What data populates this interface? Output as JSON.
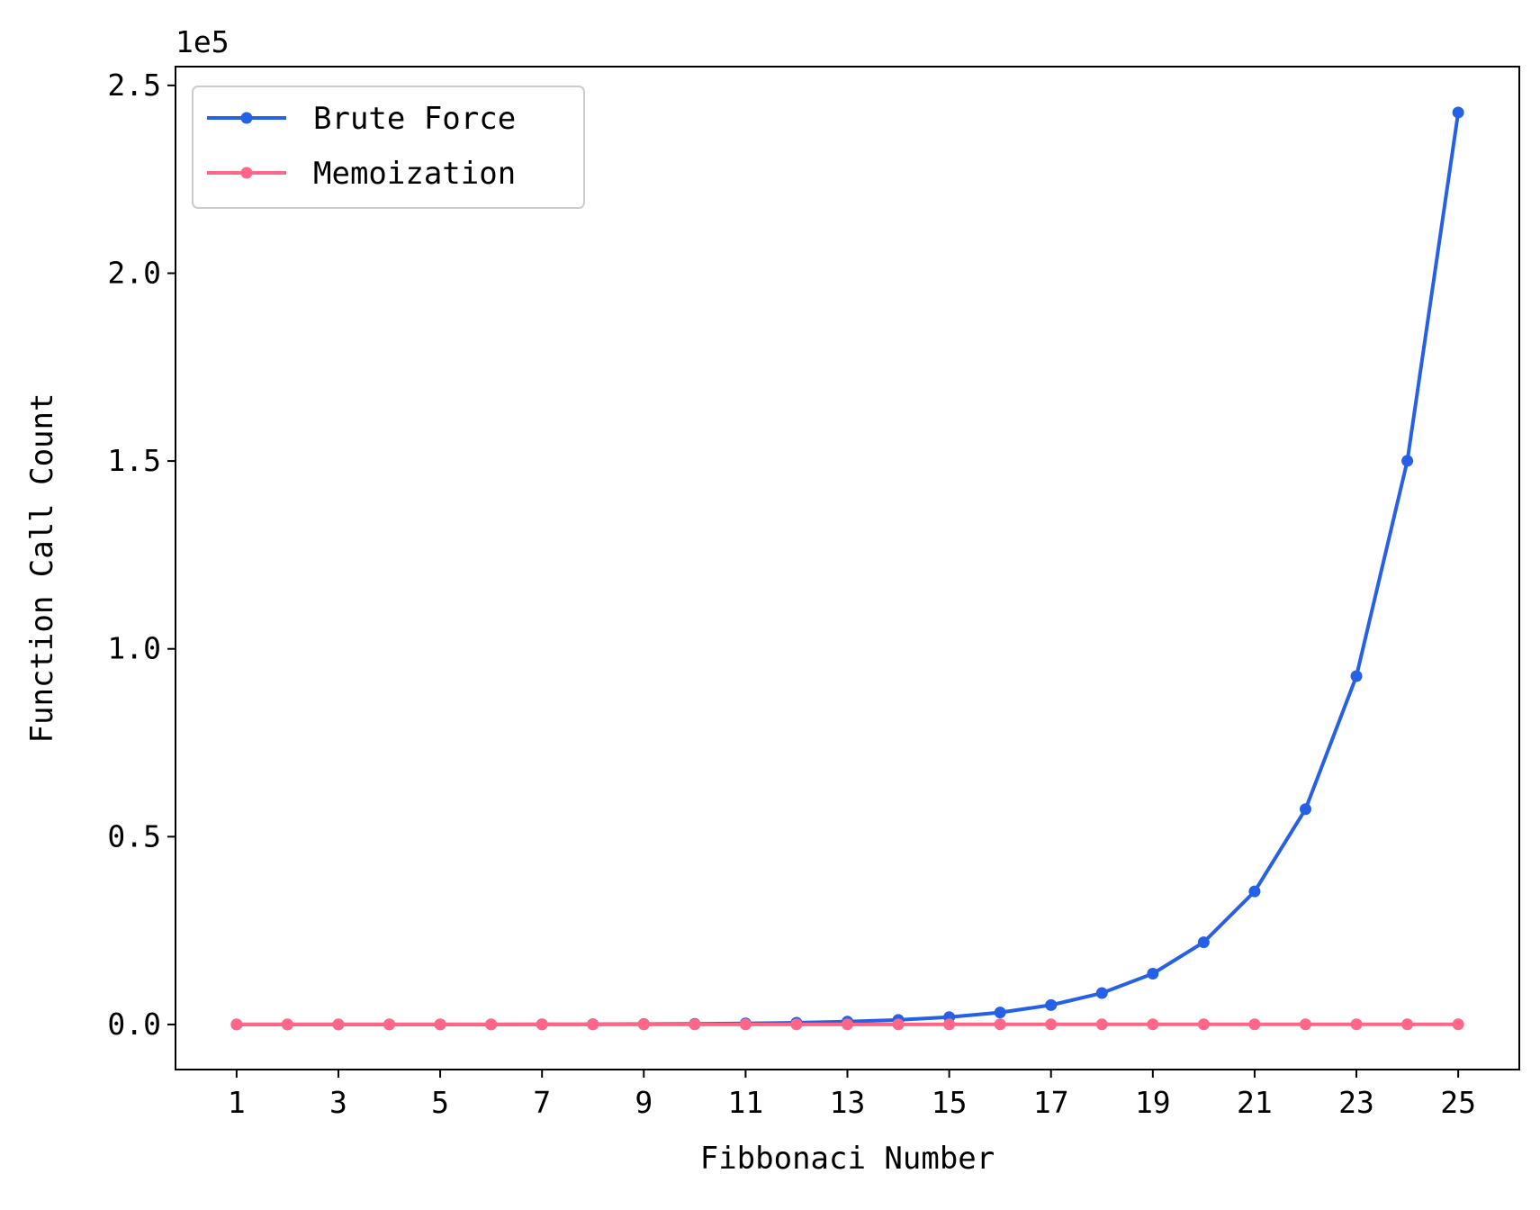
{
  "chart_data": {
    "type": "line",
    "title": "",
    "xlabel": "Fibbonaci Number",
    "ylabel": "Function Call Count",
    "y_offset_label": "1e5",
    "y_scale_factor": 100000,
    "xlim": [
      -0.2,
      26.2
    ],
    "ylim": [
      -12000,
      255000
    ],
    "x_ticks": [
      1,
      3,
      5,
      7,
      9,
      11,
      13,
      15,
      17,
      19,
      21,
      23,
      25
    ],
    "y_ticks": [
      0,
      50000,
      100000,
      150000,
      200000,
      250000
    ],
    "y_tick_labels": [
      "0.0",
      "0.5",
      "1.0",
      "1.5",
      "2.0",
      "2.5"
    ],
    "grid": false,
    "legend_position": "top-left",
    "x": [
      1,
      2,
      3,
      4,
      5,
      6,
      7,
      8,
      9,
      10,
      11,
      12,
      13,
      14,
      15,
      16,
      17,
      18,
      19,
      20,
      21,
      22,
      23,
      24,
      25
    ],
    "series": [
      {
        "name": "Brute Force",
        "color": "#2660e6",
        "marker": "circle",
        "values": [
          1,
          3,
          5,
          9,
          15,
          25,
          41,
          67,
          109,
          177,
          287,
          465,
          753,
          1219,
          1973,
          3193,
          5167,
          8361,
          13529,
          21891,
          35421,
          57313,
          92735,
          150049,
          242785
        ]
      },
      {
        "name": "Memoization",
        "color": "#ff6688",
        "marker": "circle",
        "values": [
          1,
          3,
          5,
          7,
          9,
          11,
          13,
          15,
          17,
          19,
          21,
          23,
          25,
          27,
          29,
          31,
          33,
          35,
          37,
          39,
          41,
          43,
          45,
          47,
          49
        ]
      }
    ]
  }
}
